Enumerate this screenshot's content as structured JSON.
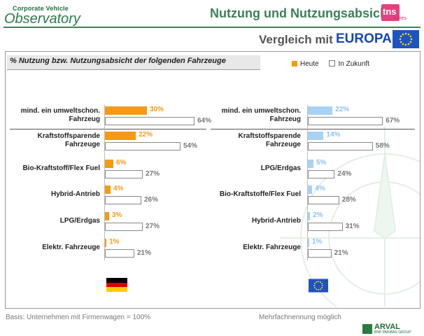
{
  "header": {
    "logo_line1": "Corporate Vehicle",
    "logo_line2": "Observatory",
    "title": "Nutzung und Nutzungsabsicht",
    "tns_main": "tns",
    "tns_sub": "sofres",
    "compare_label": "Vergleich mit",
    "compare_region": "EUROPA"
  },
  "subtitle": "% Nutzung bzw. Nutzungsabsicht der folgenden Fahrzeuge",
  "legend": {
    "heute": "Heute",
    "zukunft": "In Zukunft"
  },
  "chart_data": [
    {
      "type": "bar",
      "region": "Deutschland",
      "categories": [
        "mind. ein umweltschon. Fahrzeug",
        "Kraftstoffsparende Fahrzeuge",
        "Bio-Kraftstoff/Flex Fuel",
        "Hybrid-Antrieb",
        "LPG/Erdgas",
        "Elektr. Fahrzeuge"
      ],
      "category_lines": [
        [
          "mind. ein umweltschon.",
          "Fahrzeug"
        ],
        [
          "Kraftstoffsparende",
          "Fahrzeuge"
        ],
        [
          "Bio-Kraftstoff/Flex Fuel"
        ],
        [
          "Hybrid-Antrieb"
        ],
        [
          "LPG/Erdgas"
        ],
        [
          "Elektr. Fahrzeuge"
        ]
      ],
      "series": [
        {
          "name": "Heute",
          "values": [
            30,
            22,
            6,
            4,
            3,
            1
          ]
        },
        {
          "name": "In Zukunft",
          "values": [
            64,
            54,
            27,
            26,
            27,
            21
          ]
        }
      ],
      "value_labels": {
        "Heute": [
          "30%",
          "22%",
          "6%",
          "4%",
          "3%",
          "1%"
        ],
        "In Zukunft": [
          "64%",
          "54%",
          "27%",
          "26%",
          "27%",
          "21%"
        ]
      },
      "colors": {
        "Heute": "#f39b17",
        "In Zukunft": "#ffffff"
      }
    },
    {
      "type": "bar",
      "region": "EUROPA",
      "categories": [
        "mind. ein umweltschon. Fahrzeug",
        "Kraftstoffsparende Fahrzeuge",
        "LPG/Erdgas",
        "Bio-Kraftstoffe/Flex Fuel",
        "Hybrid-Antrieb",
        "Elektr. Fahrzeuge"
      ],
      "category_lines": [
        [
          "mind. ein umweltschon.",
          "Fahrzeug"
        ],
        [
          "Kraftstoffsparende",
          "Fahrzeuge"
        ],
        [
          "LPG/Erdgas"
        ],
        [
          "Bio-Kraftstoffe/Flex Fuel"
        ],
        [
          "Hybrid-Antrieb"
        ],
        [
          "Elektr. Fahrzeuge"
        ]
      ],
      "series": [
        {
          "name": "Heute",
          "values": [
            22,
            14,
            5,
            4,
            2,
            1
          ]
        },
        {
          "name": "In Zukunft",
          "values": [
            67,
            58,
            24,
            28,
            31,
            21
          ]
        }
      ],
      "value_labels": {
        "Heute": [
          "22%",
          "14%",
          "5%",
          "4%",
          "2%",
          "1%"
        ],
        "In Zukunft": [
          "67%",
          "58%",
          "24%",
          "28%",
          "31%",
          "21%"
        ]
      },
      "colors": {
        "Heute": "#a8d2f3",
        "In Zukunft": "#ffffff"
      }
    }
  ],
  "footer": {
    "basis": "Basis: Unternehmen mit Firmenwagen = 100%",
    "note": "Mehrfachnennung möglich",
    "brand": "ARVAL",
    "brand_sub": "BNP PARIBAS GROUP"
  },
  "colors": {
    "accent_green": "#2e8a53",
    "europa_blue": "#1646b8"
  },
  "icons": [
    "eu-flag-icon",
    "germany-flag-icon",
    "compass-watermark-icon"
  ]
}
